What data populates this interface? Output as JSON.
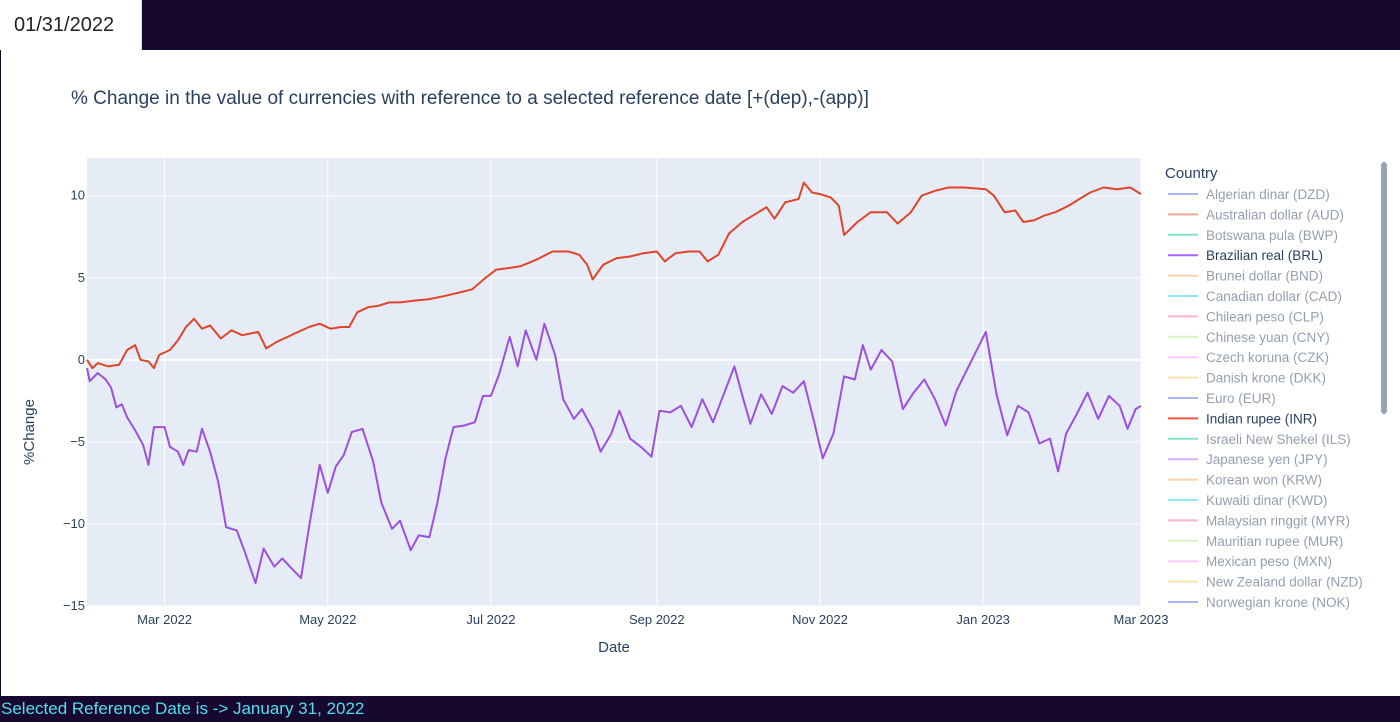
{
  "date_picker": {
    "value": "01/31/2022"
  },
  "footer_text": "Selected Reference Date is -> January 31, 2022",
  "colors": {
    "header_bg": "#16082e",
    "plot_bg": "#e5ecf6",
    "footer_text": "#4fe0f0",
    "inr": "#e0452a",
    "brl": "#9d4fe0"
  },
  "chart_data": {
    "type": "line",
    "title": "% Change in the value of currencies with reference to a selected reference date [+(dep),-(app)]",
    "xlabel": "Date",
    "ylabel": "%Change",
    "xlim": [
      "2022-01-31",
      "2023-03-01"
    ],
    "ylim": [
      -15,
      12.3
    ],
    "x_ticks": [
      {
        "date": "2022-03-01",
        "label": "Mar 2022"
      },
      {
        "date": "2022-05-01",
        "label": "May 2022"
      },
      {
        "date": "2022-07-01",
        "label": "Jul 2022"
      },
      {
        "date": "2022-09-01",
        "label": "Sep 2022"
      },
      {
        "date": "2022-11-01",
        "label": "Nov 2022"
      },
      {
        "date": "2023-01-01",
        "label": "Jan 2023"
      },
      {
        "date": "2023-03-01",
        "label": "Mar 2023"
      }
    ],
    "y_ticks": [
      {
        "value": 10,
        "label": "10"
      },
      {
        "value": 5,
        "label": "5"
      },
      {
        "value": 0,
        "label": "0"
      },
      {
        "value": -5,
        "label": "−5"
      },
      {
        "value": -10,
        "label": "−10"
      },
      {
        "value": -15,
        "label": "−15"
      }
    ],
    "grid": true,
    "legend": {
      "title": "Country",
      "placement": "right",
      "items": [
        {
          "name": "Algerian dinar (DZD)",
          "color": "#636efa",
          "active": false
        },
        {
          "name": "Australian dollar (AUD)",
          "color": "#ef553b",
          "active": false
        },
        {
          "name": "Botswana pula (BWP)",
          "color": "#00cc96",
          "active": false
        },
        {
          "name": "Brazilian real (BRL)",
          "color": "#ab63fa",
          "active": true
        },
        {
          "name": "Brunei dollar (BND)",
          "color": "#ffa15a",
          "active": false
        },
        {
          "name": "Canadian dollar (CAD)",
          "color": "#19d3f3",
          "active": false
        },
        {
          "name": "Chilean peso (CLP)",
          "color": "#ff6692",
          "active": false
        },
        {
          "name": "Chinese yuan (CNY)",
          "color": "#b6e880",
          "active": false
        },
        {
          "name": "Czech koruna (CZK)",
          "color": "#ff97ff",
          "active": false
        },
        {
          "name": "Danish krone (DKK)",
          "color": "#fecb52",
          "active": false
        },
        {
          "name": "Euro (EUR)",
          "color": "#636efa",
          "active": false
        },
        {
          "name": "Indian rupee (INR)",
          "color": "#ef553b",
          "active": true
        },
        {
          "name": "Israeli New Shekel (ILS)",
          "color": "#00cc96",
          "active": false
        },
        {
          "name": "Japanese yen (JPY)",
          "color": "#ab63fa",
          "active": false
        },
        {
          "name": "Korean won (KRW)",
          "color": "#ffa15a",
          "active": false
        },
        {
          "name": "Kuwaiti dinar (KWD)",
          "color": "#19d3f3",
          "active": false
        },
        {
          "name": "Malaysian ringgit (MYR)",
          "color": "#ff6692",
          "active": false
        },
        {
          "name": "Mauritian rupee (MUR)",
          "color": "#b6e880",
          "active": false
        },
        {
          "name": "Mexican peso (MXN)",
          "color": "#ff97ff",
          "active": false
        },
        {
          "name": "New Zealand dollar (NZD)",
          "color": "#fecb52",
          "active": false
        },
        {
          "name": "Norwegian krone (NOK)",
          "color": "#636efa",
          "active": false
        }
      ]
    },
    "series": [
      {
        "name": "Indian rupee (INR)",
        "color": "#e0452a",
        "points": [
          [
            "2022-01-31",
            0
          ],
          [
            "2022-02-02",
            -0.5
          ],
          [
            "2022-02-04",
            -0.2
          ],
          [
            "2022-02-08",
            -0.4
          ],
          [
            "2022-02-12",
            -0.3
          ],
          [
            "2022-02-15",
            0.6
          ],
          [
            "2022-02-18",
            0.9
          ],
          [
            "2022-02-20",
            0.0
          ],
          [
            "2022-02-23",
            -0.1
          ],
          [
            "2022-02-25",
            -0.5
          ],
          [
            "2022-02-27",
            0.3
          ],
          [
            "2022-03-03",
            0.6
          ],
          [
            "2022-03-06",
            1.2
          ],
          [
            "2022-03-09",
            2.0
          ],
          [
            "2022-03-12",
            2.5
          ],
          [
            "2022-03-15",
            1.9
          ],
          [
            "2022-03-18",
            2.1
          ],
          [
            "2022-03-22",
            1.3
          ],
          [
            "2022-03-26",
            1.8
          ],
          [
            "2022-03-30",
            1.5
          ],
          [
            "2022-04-05",
            1.7
          ],
          [
            "2022-04-08",
            0.7
          ],
          [
            "2022-04-12",
            1.1
          ],
          [
            "2022-04-16",
            1.4
          ],
          [
            "2022-04-20",
            1.7
          ],
          [
            "2022-04-24",
            2.0
          ],
          [
            "2022-04-28",
            2.2
          ],
          [
            "2022-05-02",
            1.9
          ],
          [
            "2022-05-06",
            2.0
          ],
          [
            "2022-05-09",
            2.0
          ],
          [
            "2022-05-12",
            2.9
          ],
          [
            "2022-05-16",
            3.2
          ],
          [
            "2022-05-20",
            3.3
          ],
          [
            "2022-05-24",
            3.5
          ],
          [
            "2022-05-28",
            3.5
          ],
          [
            "2022-06-02",
            3.6
          ],
          [
            "2022-06-08",
            3.7
          ],
          [
            "2022-06-14",
            3.9
          ],
          [
            "2022-06-19",
            4.1
          ],
          [
            "2022-06-24",
            4.3
          ],
          [
            "2022-06-29",
            5.0
          ],
          [
            "2022-07-03",
            5.5
          ],
          [
            "2022-07-08",
            5.6
          ],
          [
            "2022-07-12",
            5.7
          ],
          [
            "2022-07-18",
            6.1
          ],
          [
            "2022-07-24",
            6.6
          ],
          [
            "2022-07-30",
            6.6
          ],
          [
            "2022-08-03",
            6.4
          ],
          [
            "2022-08-06",
            5.8
          ],
          [
            "2022-08-08",
            4.9
          ],
          [
            "2022-08-12",
            5.8
          ],
          [
            "2022-08-17",
            6.2
          ],
          [
            "2022-08-22",
            6.3
          ],
          [
            "2022-08-27",
            6.5
          ],
          [
            "2022-09-01",
            6.6
          ],
          [
            "2022-09-04",
            6.0
          ],
          [
            "2022-09-08",
            6.5
          ],
          [
            "2022-09-13",
            6.6
          ],
          [
            "2022-09-17",
            6.6
          ],
          [
            "2022-09-20",
            6.0
          ],
          [
            "2022-09-24",
            6.4
          ],
          [
            "2022-09-28",
            7.7
          ],
          [
            "2022-10-03",
            8.4
          ],
          [
            "2022-10-08",
            8.9
          ],
          [
            "2022-10-12",
            9.3
          ],
          [
            "2022-10-15",
            8.6
          ],
          [
            "2022-10-19",
            9.6
          ],
          [
            "2022-10-24",
            9.8
          ],
          [
            "2022-10-26",
            10.8
          ],
          [
            "2022-10-29",
            10.2
          ],
          [
            "2022-11-01",
            10.1
          ],
          [
            "2022-11-05",
            9.9
          ],
          [
            "2022-11-08",
            9.4
          ],
          [
            "2022-11-10",
            7.6
          ],
          [
            "2022-11-15",
            8.4
          ],
          [
            "2022-11-20",
            9.0
          ],
          [
            "2022-11-26",
            9.0
          ],
          [
            "2022-11-30",
            8.3
          ],
          [
            "2022-12-05",
            9.0
          ],
          [
            "2022-12-09",
            10.0
          ],
          [
            "2022-12-14",
            10.3
          ],
          [
            "2022-12-19",
            10.5
          ],
          [
            "2022-12-25",
            10.5
          ],
          [
            "2023-01-02",
            10.4
          ],
          [
            "2023-01-05",
            10.0
          ],
          [
            "2023-01-09",
            9.0
          ],
          [
            "2023-01-13",
            9.1
          ],
          [
            "2023-01-16",
            8.4
          ],
          [
            "2023-01-20",
            8.5
          ],
          [
            "2023-01-24",
            8.8
          ],
          [
            "2023-01-28",
            9.0
          ],
          [
            "2023-02-02",
            9.4
          ],
          [
            "2023-02-06",
            9.8
          ],
          [
            "2023-02-10",
            10.2
          ],
          [
            "2023-02-15",
            10.5
          ],
          [
            "2023-02-20",
            10.4
          ],
          [
            "2023-02-25",
            10.5
          ],
          [
            "2023-03-01",
            10.1
          ]
        ]
      },
      {
        "name": "Brazilian real (BRL)",
        "color": "#9d4fe0",
        "points": [
          [
            "2022-01-31",
            -0.5
          ],
          [
            "2022-02-01",
            -1.3
          ],
          [
            "2022-02-04",
            -0.8
          ],
          [
            "2022-02-07",
            -1.2
          ],
          [
            "2022-02-09",
            -1.7
          ],
          [
            "2022-02-11",
            -2.9
          ],
          [
            "2022-02-13",
            -2.7
          ],
          [
            "2022-02-15",
            -3.5
          ],
          [
            "2022-02-18",
            -4.3
          ],
          [
            "2022-02-21",
            -5.2
          ],
          [
            "2022-02-23",
            -6.4
          ],
          [
            "2022-02-25",
            -4.1
          ],
          [
            "2022-03-01",
            -4.1
          ],
          [
            "2022-03-03",
            -5.3
          ],
          [
            "2022-03-06",
            -5.6
          ],
          [
            "2022-03-08",
            -6.4
          ],
          [
            "2022-03-10",
            -5.5
          ],
          [
            "2022-03-13",
            -5.6
          ],
          [
            "2022-03-15",
            -4.2
          ],
          [
            "2022-03-18",
            -5.6
          ],
          [
            "2022-03-21",
            -7.4
          ],
          [
            "2022-03-24",
            -10.2
          ],
          [
            "2022-03-28",
            -10.4
          ],
          [
            "2022-03-31",
            -11.7
          ],
          [
            "2022-04-04",
            -13.6
          ],
          [
            "2022-04-07",
            -11.5
          ],
          [
            "2022-04-11",
            -12.6
          ],
          [
            "2022-04-14",
            -12.1
          ],
          [
            "2022-04-18",
            -12.8
          ],
          [
            "2022-04-21",
            -13.3
          ],
          [
            "2022-04-24",
            -10.2
          ],
          [
            "2022-04-28",
            -6.4
          ],
          [
            "2022-05-01",
            -8.1
          ],
          [
            "2022-05-04",
            -6.5
          ],
          [
            "2022-05-07",
            -5.8
          ],
          [
            "2022-05-10",
            -4.4
          ],
          [
            "2022-05-14",
            -4.2
          ],
          [
            "2022-05-18",
            -6.2
          ],
          [
            "2022-05-21",
            -8.7
          ],
          [
            "2022-05-25",
            -10.3
          ],
          [
            "2022-05-28",
            -9.8
          ],
          [
            "2022-06-01",
            -11.6
          ],
          [
            "2022-06-04",
            -10.7
          ],
          [
            "2022-06-08",
            -10.8
          ],
          [
            "2022-06-11",
            -8.7
          ],
          [
            "2022-06-14",
            -6.0
          ],
          [
            "2022-06-17",
            -4.1
          ],
          [
            "2022-06-21",
            -4.0
          ],
          [
            "2022-06-25",
            -3.8
          ],
          [
            "2022-06-28",
            -2.2
          ],
          [
            "2022-07-01",
            -2.2
          ],
          [
            "2022-07-04",
            -0.9
          ],
          [
            "2022-07-08",
            1.4
          ],
          [
            "2022-07-11",
            -0.4
          ],
          [
            "2022-07-14",
            1.8
          ],
          [
            "2022-07-18",
            0.0
          ],
          [
            "2022-07-21",
            2.2
          ],
          [
            "2022-07-25",
            0.3
          ],
          [
            "2022-07-28",
            -2.4
          ],
          [
            "2022-08-01",
            -3.6
          ],
          [
            "2022-08-04",
            -3.0
          ],
          [
            "2022-08-08",
            -4.2
          ],
          [
            "2022-08-11",
            -5.6
          ],
          [
            "2022-08-15",
            -4.5
          ],
          [
            "2022-08-18",
            -3.1
          ],
          [
            "2022-08-22",
            -4.8
          ],
          [
            "2022-08-26",
            -5.3
          ],
          [
            "2022-08-30",
            -5.9
          ],
          [
            "2022-09-02",
            -3.1
          ],
          [
            "2022-09-06",
            -3.2
          ],
          [
            "2022-09-10",
            -2.8
          ],
          [
            "2022-09-14",
            -4.1
          ],
          [
            "2022-09-18",
            -2.4
          ],
          [
            "2022-09-22",
            -3.8
          ],
          [
            "2022-09-26",
            -2.1
          ],
          [
            "2022-09-30",
            -0.4
          ],
          [
            "2022-10-03",
            -2.2
          ],
          [
            "2022-10-06",
            -3.9
          ],
          [
            "2022-10-10",
            -2.1
          ],
          [
            "2022-10-14",
            -3.3
          ],
          [
            "2022-10-18",
            -1.6
          ],
          [
            "2022-10-22",
            -2.0
          ],
          [
            "2022-10-26",
            -1.3
          ],
          [
            "2022-10-30",
            -3.9
          ],
          [
            "2022-11-02",
            -6.0
          ],
          [
            "2022-11-06",
            -4.5
          ],
          [
            "2022-11-10",
            -1.0
          ],
          [
            "2022-11-14",
            -1.2
          ],
          [
            "2022-11-17",
            0.9
          ],
          [
            "2022-11-20",
            -0.6
          ],
          [
            "2022-11-24",
            0.6
          ],
          [
            "2022-11-28",
            -0.1
          ],
          [
            "2022-12-02",
            -3.0
          ],
          [
            "2022-12-06",
            -2.0
          ],
          [
            "2022-12-10",
            -1.2
          ],
          [
            "2022-12-14",
            -2.4
          ],
          [
            "2022-12-18",
            -4.0
          ],
          [
            "2022-12-22",
            -1.9
          ],
          [
            "2023-01-02",
            1.7
          ],
          [
            "2023-01-06",
            -2.1
          ],
          [
            "2023-01-10",
            -4.6
          ],
          [
            "2023-01-14",
            -2.8
          ],
          [
            "2023-01-18",
            -3.2
          ],
          [
            "2023-01-22",
            -5.1
          ],
          [
            "2023-01-26",
            -4.8
          ],
          [
            "2023-01-29",
            -6.8
          ],
          [
            "2023-02-01",
            -4.5
          ],
          [
            "2023-02-05",
            -3.3
          ],
          [
            "2023-02-09",
            -2.0
          ],
          [
            "2023-02-13",
            -3.6
          ],
          [
            "2023-02-17",
            -2.2
          ],
          [
            "2023-02-21",
            -2.8
          ],
          [
            "2023-02-24",
            -4.2
          ],
          [
            "2023-02-27",
            -3.0
          ],
          [
            "2023-03-01",
            -2.8
          ]
        ]
      }
    ]
  }
}
